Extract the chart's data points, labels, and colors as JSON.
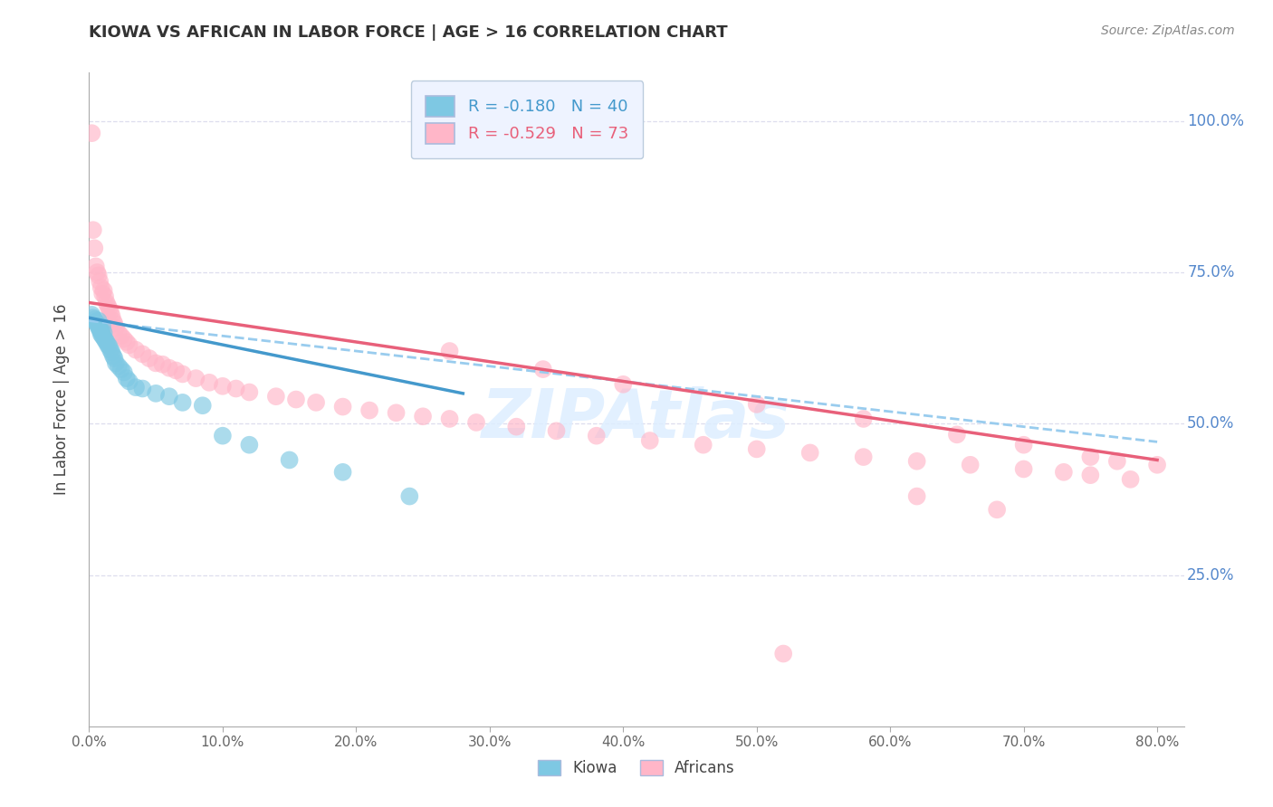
{
  "title": "KIOWA VS AFRICAN IN LABOR FORCE | AGE > 16 CORRELATION CHART",
  "source": "Source: ZipAtlas.com",
  "ylabel": "In Labor Force | Age > 16",
  "x_tick_labels": [
    "0.0%",
    "10.0%",
    "20.0%",
    "30.0%",
    "40.0%",
    "50.0%",
    "60.0%",
    "70.0%",
    "80.0%"
  ],
  "x_tick_vals": [
    0.0,
    0.1,
    0.2,
    0.3,
    0.4,
    0.5,
    0.6,
    0.7,
    0.8
  ],
  "y_tick_labels": [
    "25.0%",
    "50.0%",
    "75.0%",
    "100.0%"
  ],
  "y_tick_vals": [
    0.25,
    0.5,
    0.75,
    1.0
  ],
  "xlim": [
    0.0,
    0.82
  ],
  "ylim": [
    0.0,
    1.08
  ],
  "kiowa_R": -0.18,
  "kiowa_N": 40,
  "african_R": -0.529,
  "african_N": 73,
  "kiowa_color": "#7ec8e3",
  "african_color": "#ffb6c8",
  "kiowa_line_color": "#4499cc",
  "african_line_color": "#e8607a",
  "dashed_line_color": "#99ccee",
  "legend_box_color": "#eef3ff",
  "legend_box_edge": "#bbccdd",
  "title_color": "#333333",
  "source_color": "#888888",
  "right_label_color": "#5588cc",
  "grid_color": "#ddddee",
  "watermark_color": "#ddeeff",
  "bg_color": "#ffffff",
  "kiowa_x": [
    0.002,
    0.003,
    0.004,
    0.005,
    0.006,
    0.007,
    0.007,
    0.008,
    0.008,
    0.009,
    0.009,
    0.01,
    0.01,
    0.011,
    0.011,
    0.012,
    0.013,
    0.014,
    0.015,
    0.016,
    0.017,
    0.018,
    0.019,
    0.02,
    0.022,
    0.024,
    0.026,
    0.028,
    0.03,
    0.035,
    0.04,
    0.05,
    0.06,
    0.07,
    0.085,
    0.1,
    0.12,
    0.15,
    0.19,
    0.24
  ],
  "kiowa_y": [
    0.68,
    0.675,
    0.672,
    0.668,
    0.665,
    0.67,
    0.66,
    0.658,
    0.655,
    0.652,
    0.648,
    0.66,
    0.645,
    0.65,
    0.642,
    0.638,
    0.635,
    0.63,
    0.628,
    0.622,
    0.618,
    0.612,
    0.608,
    0.6,
    0.595,
    0.59,
    0.585,
    0.575,
    0.57,
    0.56,
    0.558,
    0.55,
    0.545,
    0.535,
    0.53,
    0.48,
    0.465,
    0.44,
    0.42,
    0.38
  ],
  "african_x": [
    0.002,
    0.003,
    0.004,
    0.005,
    0.006,
    0.007,
    0.008,
    0.009,
    0.01,
    0.011,
    0.012,
    0.013,
    0.014,
    0.015,
    0.016,
    0.017,
    0.018,
    0.019,
    0.02,
    0.022,
    0.024,
    0.026,
    0.028,
    0.03,
    0.035,
    0.04,
    0.045,
    0.05,
    0.055,
    0.06,
    0.065,
    0.07,
    0.08,
    0.09,
    0.1,
    0.11,
    0.12,
    0.14,
    0.155,
    0.17,
    0.19,
    0.21,
    0.23,
    0.25,
    0.27,
    0.29,
    0.32,
    0.35,
    0.38,
    0.42,
    0.46,
    0.5,
    0.54,
    0.58,
    0.62,
    0.66,
    0.7,
    0.73,
    0.75,
    0.78,
    0.27,
    0.34,
    0.4,
    0.5,
    0.58,
    0.65,
    0.7,
    0.75,
    0.77,
    0.8,
    0.62,
    0.68,
    0.52
  ],
  "african_y": [
    0.98,
    0.82,
    0.79,
    0.76,
    0.75,
    0.745,
    0.735,
    0.725,
    0.715,
    0.72,
    0.71,
    0.7,
    0.695,
    0.69,
    0.685,
    0.678,
    0.67,
    0.665,
    0.658,
    0.65,
    0.645,
    0.64,
    0.635,
    0.63,
    0.622,
    0.615,
    0.608,
    0.6,
    0.598,
    0.592,
    0.588,
    0.582,
    0.575,
    0.568,
    0.562,
    0.558,
    0.552,
    0.545,
    0.54,
    0.535,
    0.528,
    0.522,
    0.518,
    0.512,
    0.508,
    0.502,
    0.495,
    0.488,
    0.48,
    0.472,
    0.465,
    0.458,
    0.452,
    0.445,
    0.438,
    0.432,
    0.425,
    0.42,
    0.415,
    0.408,
    0.62,
    0.59,
    0.565,
    0.532,
    0.508,
    0.482,
    0.465,
    0.445,
    0.438,
    0.432,
    0.38,
    0.358,
    0.12
  ],
  "kiowa_line_x": [
    0.0,
    0.28
  ],
  "dashed_line_x": [
    0.0,
    0.8
  ],
  "african_line_x": [
    0.0,
    0.8
  ]
}
